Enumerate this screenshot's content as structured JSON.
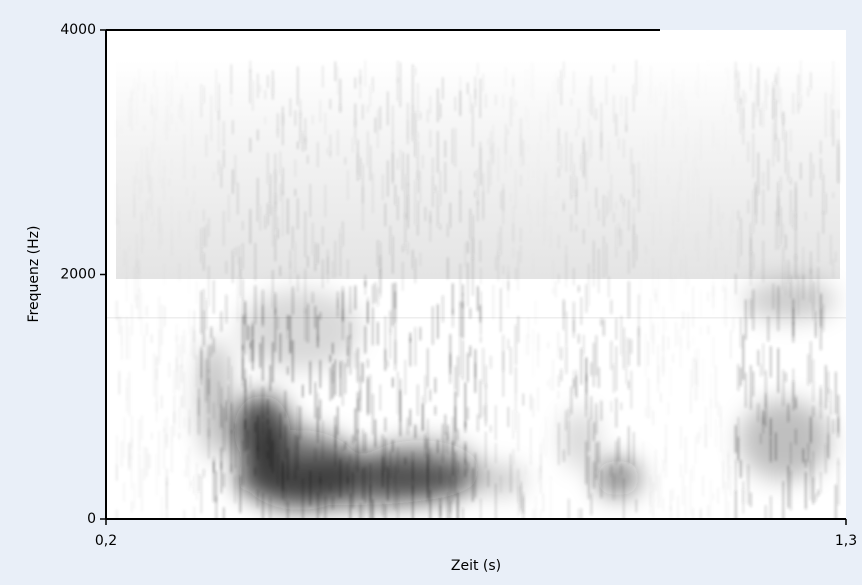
{
  "chart_data": {
    "type": "spectrogram",
    "xlabel": "Zeit (s)",
    "ylabel": "Frequenz (Hz)",
    "xlim": [
      0.2,
      1.3
    ],
    "ylim": [
      0,
      4000
    ],
    "xticks": [
      {
        "value": 0.2,
        "label": "0,2"
      },
      {
        "value": 1.3,
        "label": "1,3"
      }
    ],
    "yticks": [
      0,
      2000,
      4000
    ]
  }
}
